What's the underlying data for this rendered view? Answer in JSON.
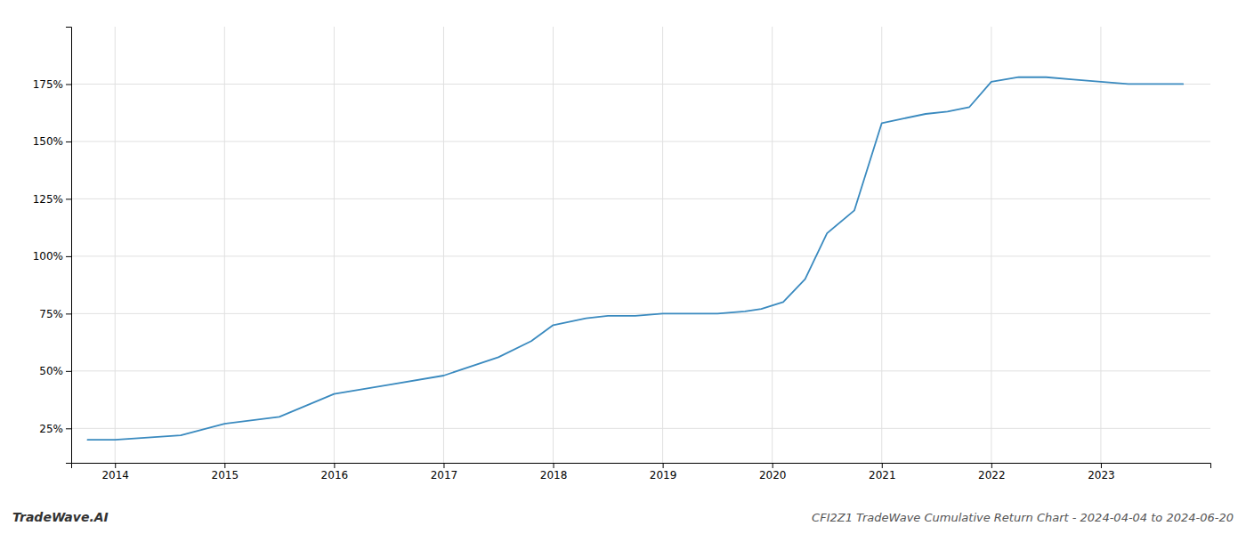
{
  "chart_data": {
    "type": "line",
    "title": "CFI2Z1 TradeWave Cumulative Return Chart - 2024-04-04 to 2024-06-20",
    "annotations": [
      "TradeWave.AI"
    ],
    "x": [
      2013.75,
      2014.0,
      2014.3,
      2014.6,
      2015.0,
      2015.5,
      2016.0,
      2016.5,
      2017.0,
      2017.5,
      2017.8,
      2018.0,
      2018.3,
      2018.5,
      2018.75,
      2019.0,
      2019.25,
      2019.5,
      2019.75,
      2019.9,
      2020.1,
      2020.3,
      2020.5,
      2020.75,
      2021.0,
      2021.2,
      2021.4,
      2021.6,
      2021.8,
      2022.0,
      2022.25,
      2022.5,
      2022.75,
      2023.0,
      2023.25,
      2023.5,
      2023.75
    ],
    "values": [
      20,
      20,
      21,
      22,
      27,
      30,
      40,
      44,
      48,
      56,
      63,
      70,
      73,
      74,
      74,
      75,
      75,
      75,
      76,
      77,
      80,
      90,
      110,
      120,
      158,
      160,
      162,
      163,
      165,
      176,
      178,
      178,
      177,
      176,
      175,
      175,
      175
    ],
    "color": "#3a8abf",
    "xlim": [
      2013.6,
      2024.0
    ],
    "ylim": [
      10,
      200
    ],
    "xticks": [
      2014,
      2015,
      2016,
      2017,
      2018,
      2019,
      2020,
      2021,
      2022,
      2023
    ],
    "yticks": [
      {
        "value": 25,
        "label": "25%"
      },
      {
        "value": 50,
        "label": "50%"
      },
      {
        "value": 75,
        "label": "75%"
      },
      {
        "value": 100,
        "label": "100%"
      },
      {
        "value": 125,
        "label": "125%"
      },
      {
        "value": 150,
        "label": "150%"
      },
      {
        "value": 175,
        "label": "175%"
      }
    ],
    "grid": true
  }
}
